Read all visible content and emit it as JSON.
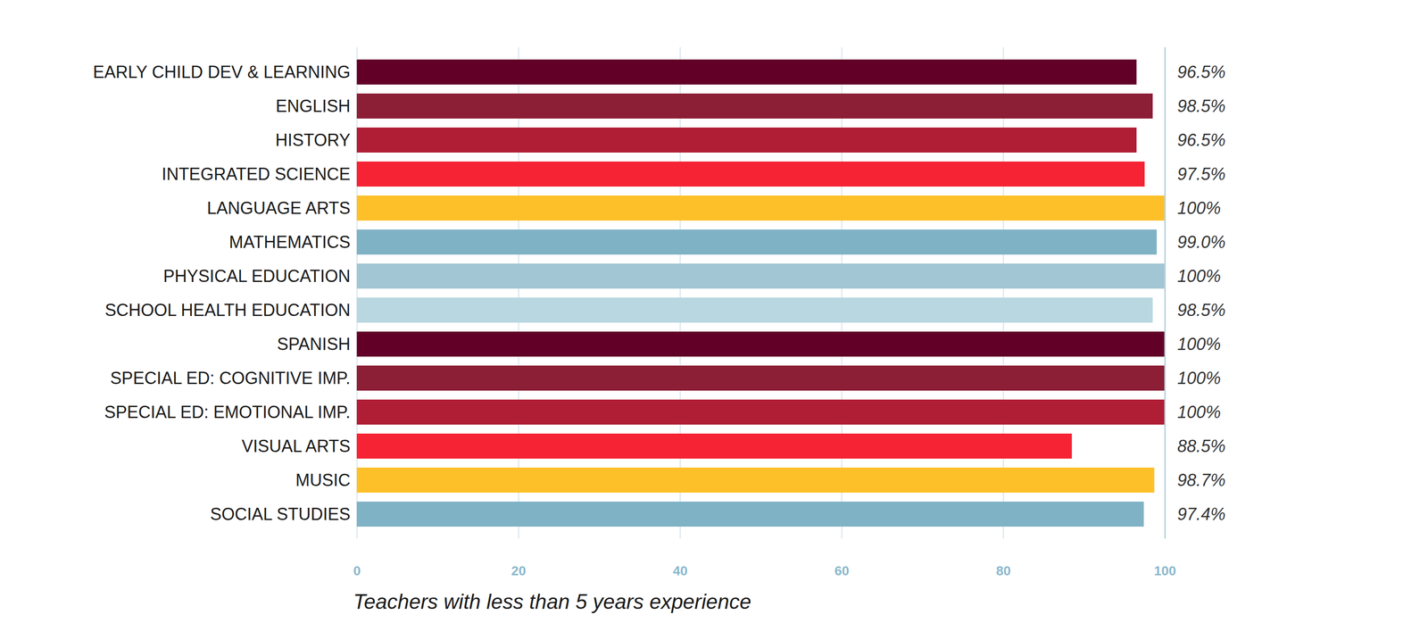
{
  "chart_data": {
    "type": "bar",
    "orientation": "horizontal",
    "x_label": "Teachers with less than 5 years experience",
    "categories": [
      "EARLY CHILD DEV & LEARNING",
      "ENGLISH",
      "HISTORY",
      "INTEGRATED SCIENCE",
      "LANGUAGE ARTS",
      "MATHEMATICS",
      "PHYSICAL EDUCATION",
      "SCHOOL HEALTH EDUCATION",
      "SPANISH",
      "SPECIAL ED: COGNITIVE IMP.",
      "SPECIAL ED: EMOTIONAL IMP.",
      "VISUAL ARTS",
      "MUSIC",
      "SOCIAL STUDIES"
    ],
    "values": [
      96.5,
      98.5,
      96.5,
      97.5,
      100,
      99.0,
      100,
      98.5,
      100,
      100,
      100,
      88.5,
      98.7,
      97.4
    ],
    "value_labels": [
      "96.5%",
      "98.5%",
      "96.5%",
      "97.5%",
      "100%",
      "99.0%",
      "100%",
      "98.5%",
      "100%",
      "100%",
      "100%",
      "88.5%",
      "98.7%",
      "97.4%"
    ],
    "colors": [
      "#620028",
      "#8c1e35",
      "#b01e35",
      "#f52334",
      "#fdc028",
      "#80b2c6",
      "#a3c6d4",
      "#b8d7e0",
      "#620028",
      "#8c1e35",
      "#b01e35",
      "#f52334",
      "#fdc028",
      "#80b2c6"
    ],
    "xlim": [
      0,
      100
    ],
    "xticks": [
      0,
      20,
      40,
      60,
      80,
      100
    ],
    "grid": true,
    "data_labels": true
  }
}
